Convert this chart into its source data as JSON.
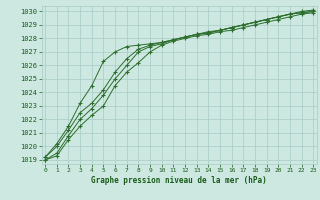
{
  "title": "Graphe pression niveau de la mer (hPa)",
  "bg_color": "#cce8e0",
  "grid_color": "#a8ccc4",
  "text_color": "#1a5c1a",
  "line_color": "#2d6e2d",
  "marker": "+",
  "x": [
    0,
    1,
    2,
    3,
    4,
    5,
    6,
    7,
    8,
    9,
    10,
    11,
    12,
    13,
    14,
    15,
    16,
    17,
    18,
    19,
    20,
    21,
    22,
    23
  ],
  "series": [
    [
      1019.0,
      1019.3,
      1020.5,
      1021.5,
      1022.3,
      1023.0,
      1024.5,
      1025.5,
      1026.2,
      1027.0,
      1027.5,
      1027.8,
      1028.0,
      1028.2,
      1028.3,
      1028.5,
      1028.6,
      1028.8,
      1029.0,
      1029.2,
      1029.4,
      1029.6,
      1029.8,
      1029.9
    ],
    [
      1019.0,
      1019.5,
      1020.8,
      1022.0,
      1022.8,
      1023.8,
      1025.0,
      1026.0,
      1027.0,
      1027.4,
      1027.6,
      1027.9,
      1028.1,
      1028.3,
      1028.4,
      1028.6,
      1028.8,
      1029.0,
      1029.2,
      1029.4,
      1029.6,
      1029.8,
      1029.9,
      1030.0
    ],
    [
      1019.2,
      1020.0,
      1021.2,
      1022.5,
      1023.2,
      1024.2,
      1025.5,
      1026.5,
      1027.2,
      1027.5,
      1027.7,
      1027.9,
      1028.1,
      1028.3,
      1028.4,
      1028.6,
      1028.8,
      1029.0,
      1029.2,
      1029.4,
      1029.6,
      1029.8,
      1029.9,
      1030.0
    ],
    [
      1019.2,
      1020.2,
      1021.5,
      1023.2,
      1024.5,
      1026.3,
      1027.0,
      1027.4,
      1027.5,
      1027.6,
      1027.7,
      1027.9,
      1028.1,
      1028.3,
      1028.5,
      1028.6,
      1028.8,
      1029.0,
      1029.2,
      1029.4,
      1029.6,
      1029.8,
      1030.0,
      1030.1
    ]
  ],
  "ylim": [
    1018.7,
    1030.4
  ],
  "yticks": [
    1019,
    1020,
    1021,
    1022,
    1023,
    1024,
    1025,
    1026,
    1027,
    1028,
    1029,
    1030
  ],
  "xticks": [
    0,
    1,
    2,
    3,
    4,
    5,
    6,
    7,
    8,
    9,
    10,
    11,
    12,
    13,
    14,
    15,
    16,
    17,
    18,
    19,
    20,
    21,
    22,
    23
  ]
}
